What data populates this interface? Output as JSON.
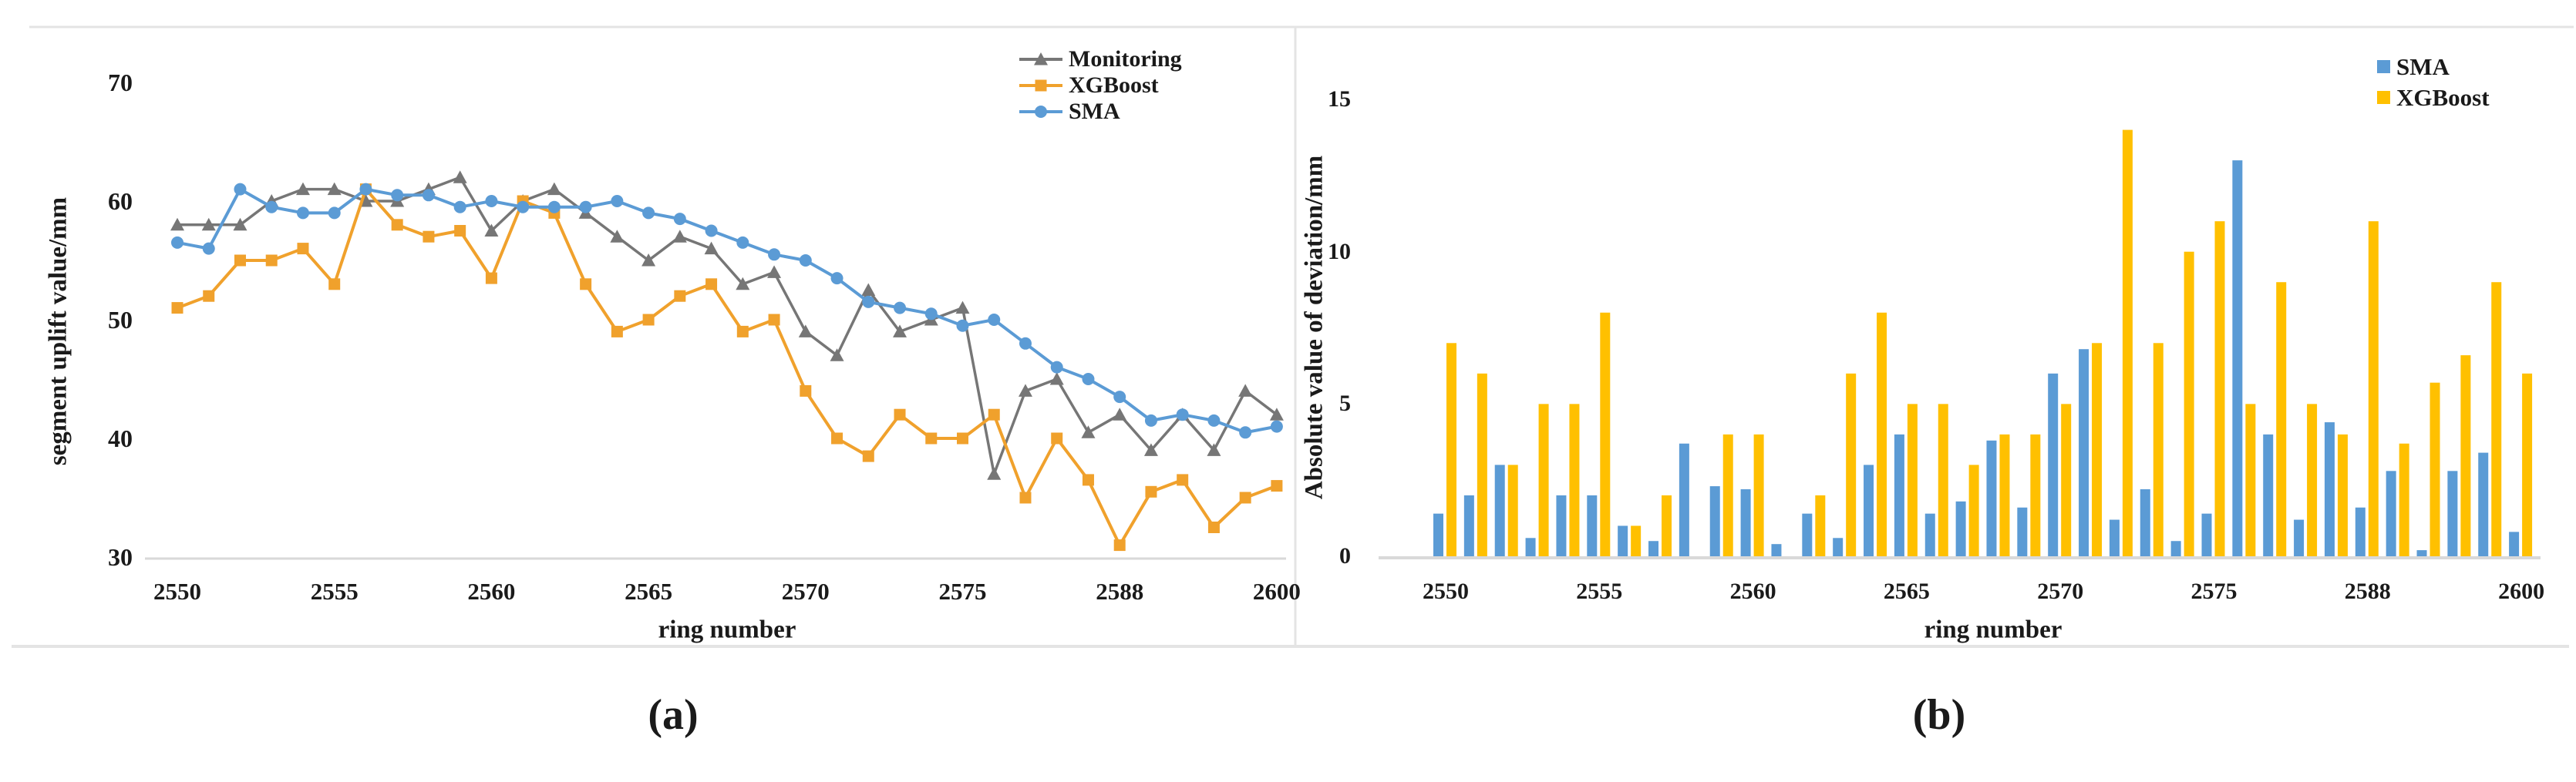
{
  "captions": {
    "a": "(a)",
    "b": "(b)"
  },
  "colors": {
    "frame_line": "#e4e4e4",
    "axis_line": "#d9d9d9",
    "text": "#1a1a1a",
    "monitoring_gray": "#767676",
    "xgboost_orange_line": "#f0a12c",
    "sma_blue": "#5b9bd5",
    "xgboost_yellow_bar": "#ffc000"
  },
  "chart_data": [
    {
      "type": "line",
      "panel": "a",
      "title": "",
      "xlabel": "ring number",
      "ylabel": "segment uplift value/mm",
      "ylim": [
        30,
        70
      ],
      "yticks": [
        30,
        40,
        50,
        60,
        70
      ],
      "xtick_labels": [
        "2550",
        "2555",
        "2560",
        "2565",
        "2570",
        "2575",
        "2588",
        "2600"
      ],
      "xtick_positions": [
        0,
        5,
        10,
        15,
        20,
        25,
        30,
        35
      ],
      "n_points": 36,
      "grid": false,
      "legend_position": "top-right",
      "series": [
        {
          "name": "Monitoring",
          "color": "#767676",
          "marker": "triangle",
          "values": [
            58,
            58,
            58,
            60,
            61,
            61,
            60,
            60,
            61,
            62,
            57.5,
            60,
            61,
            59,
            57,
            55,
            57,
            56,
            53,
            54,
            49,
            47,
            52.5,
            49,
            50,
            51,
            37,
            44,
            45,
            40.5,
            42,
            39,
            42,
            39,
            44,
            42
          ]
        },
        {
          "name": "XGBoost",
          "color": "#f0a12c",
          "marker": "square",
          "values": [
            51,
            52,
            55,
            55,
            56,
            53,
            61,
            58,
            57,
            57.5,
            53.5,
            60,
            59,
            53,
            49,
            50,
            52,
            53,
            49,
            50,
            44,
            40,
            38.5,
            42,
            40,
            40,
            42,
            35,
            40,
            36.5,
            31,
            35.5,
            36.5,
            32.5,
            35,
            36
          ]
        },
        {
          "name": "SMA",
          "color": "#5b9bd5",
          "marker": "circle",
          "values": [
            56.5,
            56,
            61,
            59.5,
            59,
            59,
            61,
            60.5,
            60.5,
            59.5,
            60,
            59.5,
            59.5,
            59.5,
            60,
            59,
            58.5,
            57.5,
            56.5,
            55.5,
            55,
            53.5,
            51.5,
            51,
            50.5,
            49.5,
            50,
            48,
            46,
            45,
            43.5,
            41.5,
            42,
            41.5,
            40.5,
            41
          ]
        }
      ]
    },
    {
      "type": "bar",
      "panel": "b",
      "title": "",
      "xlabel": "ring number",
      "ylabel": "Absolute value of deviation/mm",
      "ylim": [
        0,
        15
      ],
      "yticks": [
        0,
        5,
        10,
        15
      ],
      "xtick_labels": [
        "2550",
        "2555",
        "2560",
        "2565",
        "2570",
        "2575",
        "2588",
        "2600"
      ],
      "xtick_positions": [
        0,
        5,
        10,
        15,
        20,
        25,
        30,
        35
      ],
      "n_points": 36,
      "grid": false,
      "legend_position": "top-right",
      "series": [
        {
          "name": "SMA",
          "color": "#5b9bd5",
          "values": [
            1.4,
            2,
            3,
            0.6,
            2,
            2,
            1,
            0.5,
            3.7,
            2.3,
            2.2,
            0.4,
            1.4,
            0.6,
            3,
            4,
            1.4,
            1.8,
            3.8,
            1.6,
            6,
            6.8,
            1.2,
            2.2,
            0.5,
            1.4,
            13,
            4,
            1.2,
            4.4,
            1.6,
            2.8,
            0.2,
            2.8,
            3.4,
            0.8
          ]
        },
        {
          "name": "XGBoost",
          "color": "#ffc000",
          "values": [
            7,
            6,
            3,
            5,
            5,
            8,
            1,
            2,
            0,
            4,
            4,
            0,
            2,
            6,
            8,
            5,
            5,
            3,
            4,
            4,
            5,
            7,
            14,
            7,
            10,
            11,
            5,
            9,
            5,
            4,
            11,
            3.7,
            5.7,
            6.6,
            9,
            6
          ]
        }
      ]
    }
  ]
}
